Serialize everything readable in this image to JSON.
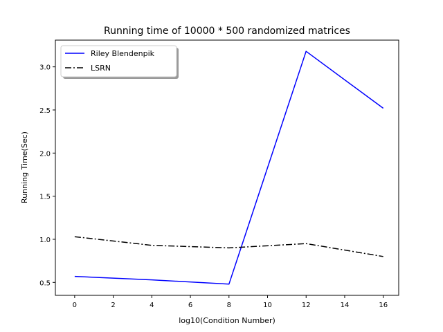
{
  "chart_data": {
    "type": "line",
    "title": "Running time of 10000 * 500 randomized matrices",
    "xlabel": "log10(Condition Number)",
    "ylabel": "Running Time(Sec)",
    "xlim": [
      -1,
      16.8
    ],
    "ylim": [
      0.35,
      3.31
    ],
    "xticks": [
      0,
      2,
      4,
      6,
      8,
      10,
      12,
      14,
      16
    ],
    "yticks": [
      0.5,
      1.0,
      1.5,
      2.0,
      2.5,
      3.0
    ],
    "xtick_labels": [
      "0",
      "2",
      "4",
      "6",
      "8",
      "10",
      "12",
      "14",
      "16"
    ],
    "ytick_labels": [
      "0.5",
      "1.0",
      "1.5",
      "2.0",
      "2.5",
      "3.0"
    ],
    "grid": false,
    "legend_position": "top-left",
    "series": [
      {
        "name": "Riley Blendenpik",
        "color": "#0000ff",
        "style": "solid",
        "x": [
          0,
          4,
          8,
          12,
          16
        ],
        "y": [
          0.57,
          0.53,
          0.48,
          3.18,
          2.52
        ]
      },
      {
        "name": "LSRN",
        "color": "#000000",
        "style": "dashdot",
        "x": [
          0,
          4,
          8,
          12,
          16
        ],
        "y": [
          1.03,
          0.93,
          0.9,
          0.95,
          0.8
        ]
      }
    ]
  }
}
